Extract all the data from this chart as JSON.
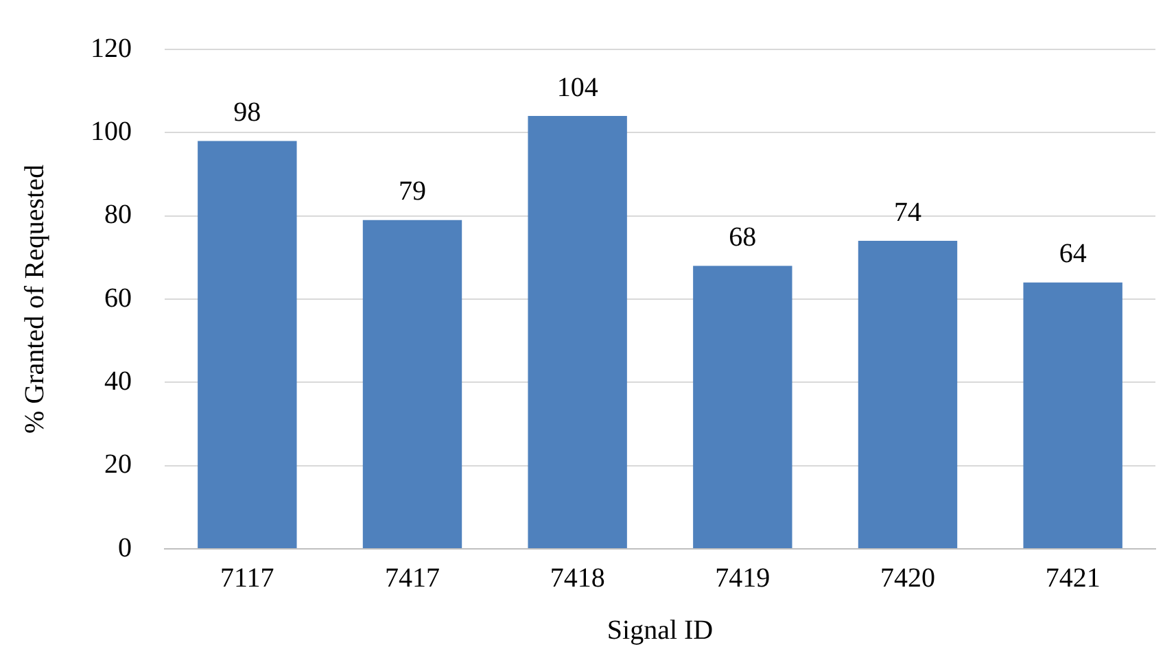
{
  "chart_data": {
    "type": "bar",
    "xlabel": "Signal ID",
    "ylabel": "% Granted of Requested",
    "categories": [
      "7117",
      "7417",
      "7418",
      "7419",
      "7420",
      "7421"
    ],
    "values": [
      98,
      79,
      104,
      68,
      74,
      64
    ],
    "color": "#4f81bd",
    "ylim": [
      0,
      120
    ],
    "yticks": [
      0,
      20,
      40,
      60,
      80,
      100,
      120
    ],
    "grid": "y",
    "data_labels": true,
    "legend": false
  }
}
